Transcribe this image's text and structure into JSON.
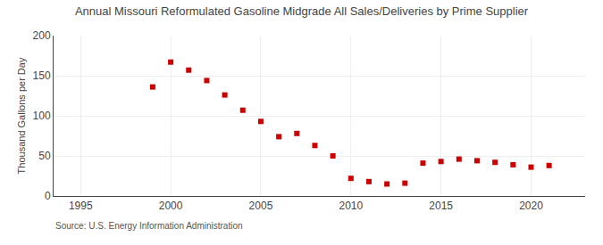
{
  "chart_data": {
    "type": "scatter",
    "title": "Annual Missouri Reformulated Gasoline Midgrade All Sales/Deliveries by Prime Supplier",
    "ylabel": "Thousand Gallons per Day",
    "source": "Source: U.S. Energy Information Administration",
    "x": [
      1999,
      2000,
      2001,
      2002,
      2003,
      2004,
      2005,
      2006,
      2007,
      2008,
      2009,
      2010,
      2011,
      2012,
      2013,
      2014,
      2015,
      2016,
      2017,
      2018,
      2019,
      2020,
      2021
    ],
    "values": [
      136,
      167,
      157,
      144,
      126,
      107,
      93,
      74,
      78,
      63,
      50,
      22,
      18,
      15,
      16,
      41,
      43,
      46,
      44,
      42,
      39,
      36,
      38
    ],
    "color": "#cc0000",
    "marker": "square",
    "xlim": [
      1993.5,
      2023
    ],
    "xticks": [
      1995,
      2000,
      2005,
      2010,
      2015,
      2020
    ],
    "ylim": [
      0,
      200
    ],
    "yticks": [
      0,
      50,
      100,
      150,
      200
    ],
    "grid": true
  }
}
